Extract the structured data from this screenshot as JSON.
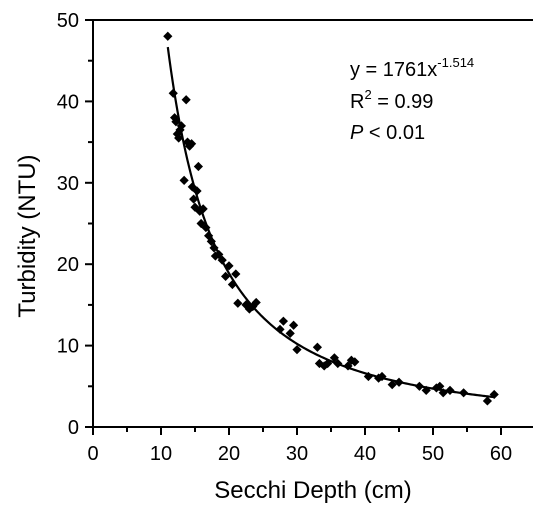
{
  "chart_data": {
    "type": "scatter",
    "xlabel": "Secchi Depth (cm)",
    "ylabel": "Turbidity (NTU)",
    "xlim": [
      0,
      60
    ],
    "ylim": [
      0,
      50
    ],
    "x_ticks": [
      "0",
      "10",
      "20",
      "30",
      "40",
      "50",
      "60"
    ],
    "y_ticks": [
      "0",
      "10",
      "20",
      "30",
      "40",
      "50"
    ],
    "grid": false,
    "annotation": {
      "eq_prefix": "y = 1761x",
      "eq_exponent": "-1.514",
      "r2_prefix": "R",
      "r2_exponent": "2",
      "r2_suffix": " = 0.99",
      "p_symbol": "P",
      "p_suffix": " < 0.01"
    },
    "fit": {
      "form": "power",
      "a": 1761,
      "b": -1.514,
      "x_range": [
        11,
        59
      ]
    },
    "points": [
      [
        11,
        48.0
      ],
      [
        11.8,
        41.0
      ],
      [
        12.0,
        38.0
      ],
      [
        12.2,
        37.5
      ],
      [
        12.4,
        36.0
      ],
      [
        12.6,
        35.5
      ],
      [
        12.8,
        36.5
      ],
      [
        13.0,
        37.0
      ],
      [
        13.4,
        30.3
      ],
      [
        13.7,
        40.2
      ],
      [
        13.9,
        35.0
      ],
      [
        14.2,
        34.5
      ],
      [
        14.5,
        34.8
      ],
      [
        14.6,
        29.5
      ],
      [
        14.8,
        28.0
      ],
      [
        15.0,
        27.0
      ],
      [
        15.3,
        29.0
      ],
      [
        15.5,
        32.0
      ],
      [
        15.7,
        26.5
      ],
      [
        15.9,
        25.0
      ],
      [
        16.2,
        26.8
      ],
      [
        16.6,
        24.5
      ],
      [
        17.0,
        23.5
      ],
      [
        17.4,
        22.8
      ],
      [
        17.8,
        22.0
      ],
      [
        18.0,
        21.0
      ],
      [
        18.5,
        21.2
      ],
      [
        19.0,
        20.5
      ],
      [
        19.5,
        18.5
      ],
      [
        20.0,
        19.8
      ],
      [
        20.5,
        17.5
      ],
      [
        21.0,
        18.8
      ],
      [
        21.3,
        15.2
      ],
      [
        22.5,
        15.0
      ],
      [
        23.0,
        14.5
      ],
      [
        23.5,
        14.8
      ],
      [
        24.0,
        15.3
      ],
      [
        27.5,
        12.0
      ],
      [
        28.0,
        13.0
      ],
      [
        29.0,
        11.5
      ],
      [
        29.5,
        12.5
      ],
      [
        30.0,
        9.5
      ],
      [
        33.0,
        9.8
      ],
      [
        33.3,
        7.8
      ],
      [
        34.0,
        7.5
      ],
      [
        34.5,
        7.8
      ],
      [
        35.5,
        8.5
      ],
      [
        36.0,
        7.8
      ],
      [
        37.5,
        7.5
      ],
      [
        38.0,
        8.2
      ],
      [
        38.5,
        8.0
      ],
      [
        40.5,
        6.2
      ],
      [
        42.0,
        6.0
      ],
      [
        42.5,
        6.2
      ],
      [
        44.0,
        5.2
      ],
      [
        45.0,
        5.5
      ],
      [
        48.0,
        5.0
      ],
      [
        49.0,
        4.5
      ],
      [
        50.5,
        4.8
      ],
      [
        51.0,
        5.0
      ],
      [
        51.5,
        4.2
      ],
      [
        52.5,
        4.5
      ],
      [
        54.5,
        4.2
      ],
      [
        58.0,
        3.2
      ],
      [
        59.0,
        4.0
      ]
    ]
  }
}
